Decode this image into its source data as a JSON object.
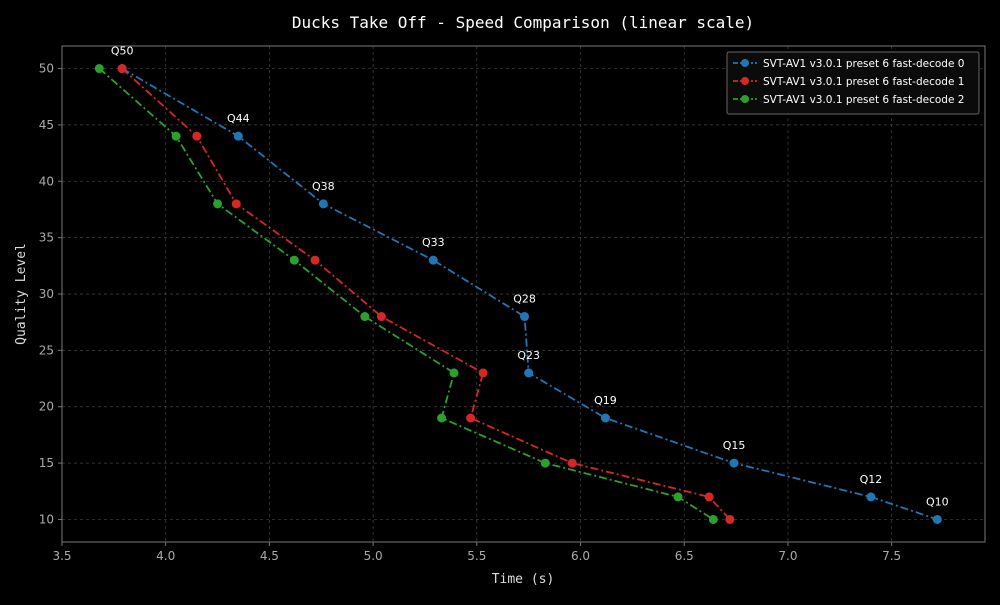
{
  "chart_data": {
    "type": "line",
    "title": "Ducks Take Off - Speed Comparison (linear scale)",
    "xlabel": "Time (s)",
    "ylabel": "Quality Level",
    "xlim": [
      3.5,
      7.95
    ],
    "ylim": [
      8,
      52
    ],
    "xticks": [
      3.5,
      4.0,
      4.5,
      5.0,
      5.5,
      6.0,
      6.5,
      7.0,
      7.5
    ],
    "xtick_labels": [
      "3.5",
      "4.0",
      "4.5",
      "5.0",
      "5.5",
      "6.0",
      "6.5",
      "7.0",
      "7.5"
    ],
    "yticks": [
      10,
      15,
      20,
      25,
      30,
      35,
      40,
      45,
      50
    ],
    "ytick_labels": [
      "10",
      "15",
      "20",
      "25",
      "30",
      "35",
      "40",
      "45",
      "50"
    ],
    "grid": true,
    "legend_position": "top-right",
    "series": [
      {
        "name": "SVT-AV1 v3.0.1 preset 6 fast-decode 0",
        "color": "#1f77b4",
        "dash": "dash-dot",
        "points": [
          {
            "x": 3.79,
            "y": 50
          },
          {
            "x": 4.35,
            "y": 44
          },
          {
            "x": 4.76,
            "y": 38
          },
          {
            "x": 5.29,
            "y": 33
          },
          {
            "x": 5.73,
            "y": 28
          },
          {
            "x": 5.75,
            "y": 23
          },
          {
            "x": 6.12,
            "y": 19
          },
          {
            "x": 6.74,
            "y": 15
          },
          {
            "x": 7.4,
            "y": 12
          },
          {
            "x": 7.72,
            "y": 10
          }
        ]
      },
      {
        "name": "SVT-AV1 v3.0.1 preset 6 fast-decode 1",
        "color": "#d62728",
        "dash": "dash-dot",
        "points": [
          {
            "x": 3.79,
            "y": 50
          },
          {
            "x": 4.15,
            "y": 44
          },
          {
            "x": 4.34,
            "y": 38
          },
          {
            "x": 4.72,
            "y": 33
          },
          {
            "x": 5.04,
            "y": 28
          },
          {
            "x": 5.53,
            "y": 23
          },
          {
            "x": 5.47,
            "y": 19
          },
          {
            "x": 5.96,
            "y": 15
          },
          {
            "x": 6.62,
            "y": 12
          },
          {
            "x": 6.72,
            "y": 10
          }
        ]
      },
      {
        "name": "SVT-AV1 v3.0.1 preset 6 fast-decode 2",
        "color": "#2ca02c",
        "dash": "dash-dot",
        "points": [
          {
            "x": 3.68,
            "y": 50
          },
          {
            "x": 4.05,
            "y": 44
          },
          {
            "x": 4.25,
            "y": 38
          },
          {
            "x": 4.62,
            "y": 33
          },
          {
            "x": 4.96,
            "y": 28
          },
          {
            "x": 5.39,
            "y": 23
          },
          {
            "x": 5.33,
            "y": 19
          },
          {
            "x": 5.83,
            "y": 15
          },
          {
            "x": 6.47,
            "y": 12
          },
          {
            "x": 6.64,
            "y": 10
          }
        ]
      }
    ],
    "annotations": [
      {
        "text": "Q50",
        "x": 3.79,
        "y": 50
      },
      {
        "text": "Q44",
        "x": 4.35,
        "y": 44
      },
      {
        "text": "Q38",
        "x": 4.76,
        "y": 38
      },
      {
        "text": "Q33",
        "x": 5.29,
        "y": 33
      },
      {
        "text": "Q28",
        "x": 5.73,
        "y": 28
      },
      {
        "text": "Q23",
        "x": 5.75,
        "y": 23
      },
      {
        "text": "Q19",
        "x": 6.12,
        "y": 19
      },
      {
        "text": "Q15",
        "x": 6.74,
        "y": 15
      },
      {
        "text": "Q12",
        "x": 7.4,
        "y": 12
      },
      {
        "text": "Q10",
        "x": 7.72,
        "y": 10
      }
    ]
  },
  "colors": {
    "background": "#000000",
    "plot_border": "#777777",
    "grid": "#444444"
  }
}
